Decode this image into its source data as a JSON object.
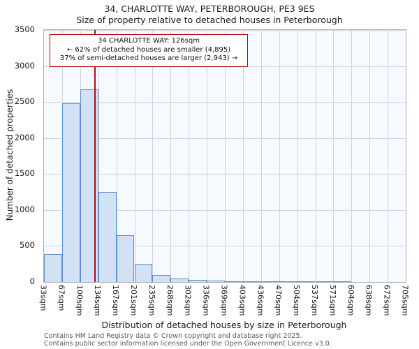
{
  "title": "34, CHARLOTTE WAY, PETERBOROUGH, PE3 9ES",
  "subtitle": "Size of property relative to detached houses in Peterborough",
  "chart_data": {
    "type": "bar",
    "title": "34, CHARLOTTE WAY, PETERBOROUGH, PE3 9ES",
    "subtitle": "Size of property relative to detached houses in Peterborough",
    "xlabel": "Distribution of detached houses by size in Peterborough",
    "ylabel": "Number of detached properties",
    "ylim": [
      0,
      3500
    ],
    "yticks": [
      0,
      500,
      1000,
      1500,
      2000,
      2500,
      3000,
      3500
    ],
    "bin_edges_sqm": [
      33,
      67,
      100,
      134,
      167,
      201,
      235,
      268,
      302,
      336,
      369,
      403,
      436,
      470,
      504,
      537,
      571,
      604,
      638,
      672,
      705
    ],
    "bin_labels": [
      "33sqm",
      "67sqm",
      "100sqm",
      "134sqm",
      "167sqm",
      "201sqm",
      "235sqm",
      "268sqm",
      "302sqm",
      "336sqm",
      "369sqm",
      "403sqm",
      "436sqm",
      "470sqm",
      "504sqm",
      "537sqm",
      "571sqm",
      "604sqm",
      "638sqm",
      "672sqm",
      "705sqm"
    ],
    "values": [
      390,
      2480,
      2680,
      1250,
      650,
      255,
      95,
      45,
      30,
      15,
      10,
      5,
      3,
      2,
      2,
      1,
      1,
      0,
      0,
      0
    ],
    "grid": true,
    "marker": {
      "label": "34 CHARLOTTE WAY",
      "value_sqm": 126,
      "x_min_sqm": 33,
      "x_max_sqm": 705
    },
    "colors": {
      "bar_fill": "#d2e1f4",
      "bar_border": "#5f8fcc",
      "marker_line": "#b01010",
      "annotation_border": "#bb0000",
      "grid_line": "#ccd5e5",
      "footer_text": "#5a5a5a"
    }
  },
  "annotation": {
    "line1": "34 CHARLOTTE WAY: 126sqm",
    "line2": "← 62% of detached houses are smaller (4,895)",
    "line3": "37% of semi-detached houses are larger (2,943) →"
  },
  "footer": {
    "line1": "Contains HM Land Registry data © Crown copyright and database right 2025.",
    "line2": "Contains public sector information licensed under the Open Government Licence v3.0."
  }
}
